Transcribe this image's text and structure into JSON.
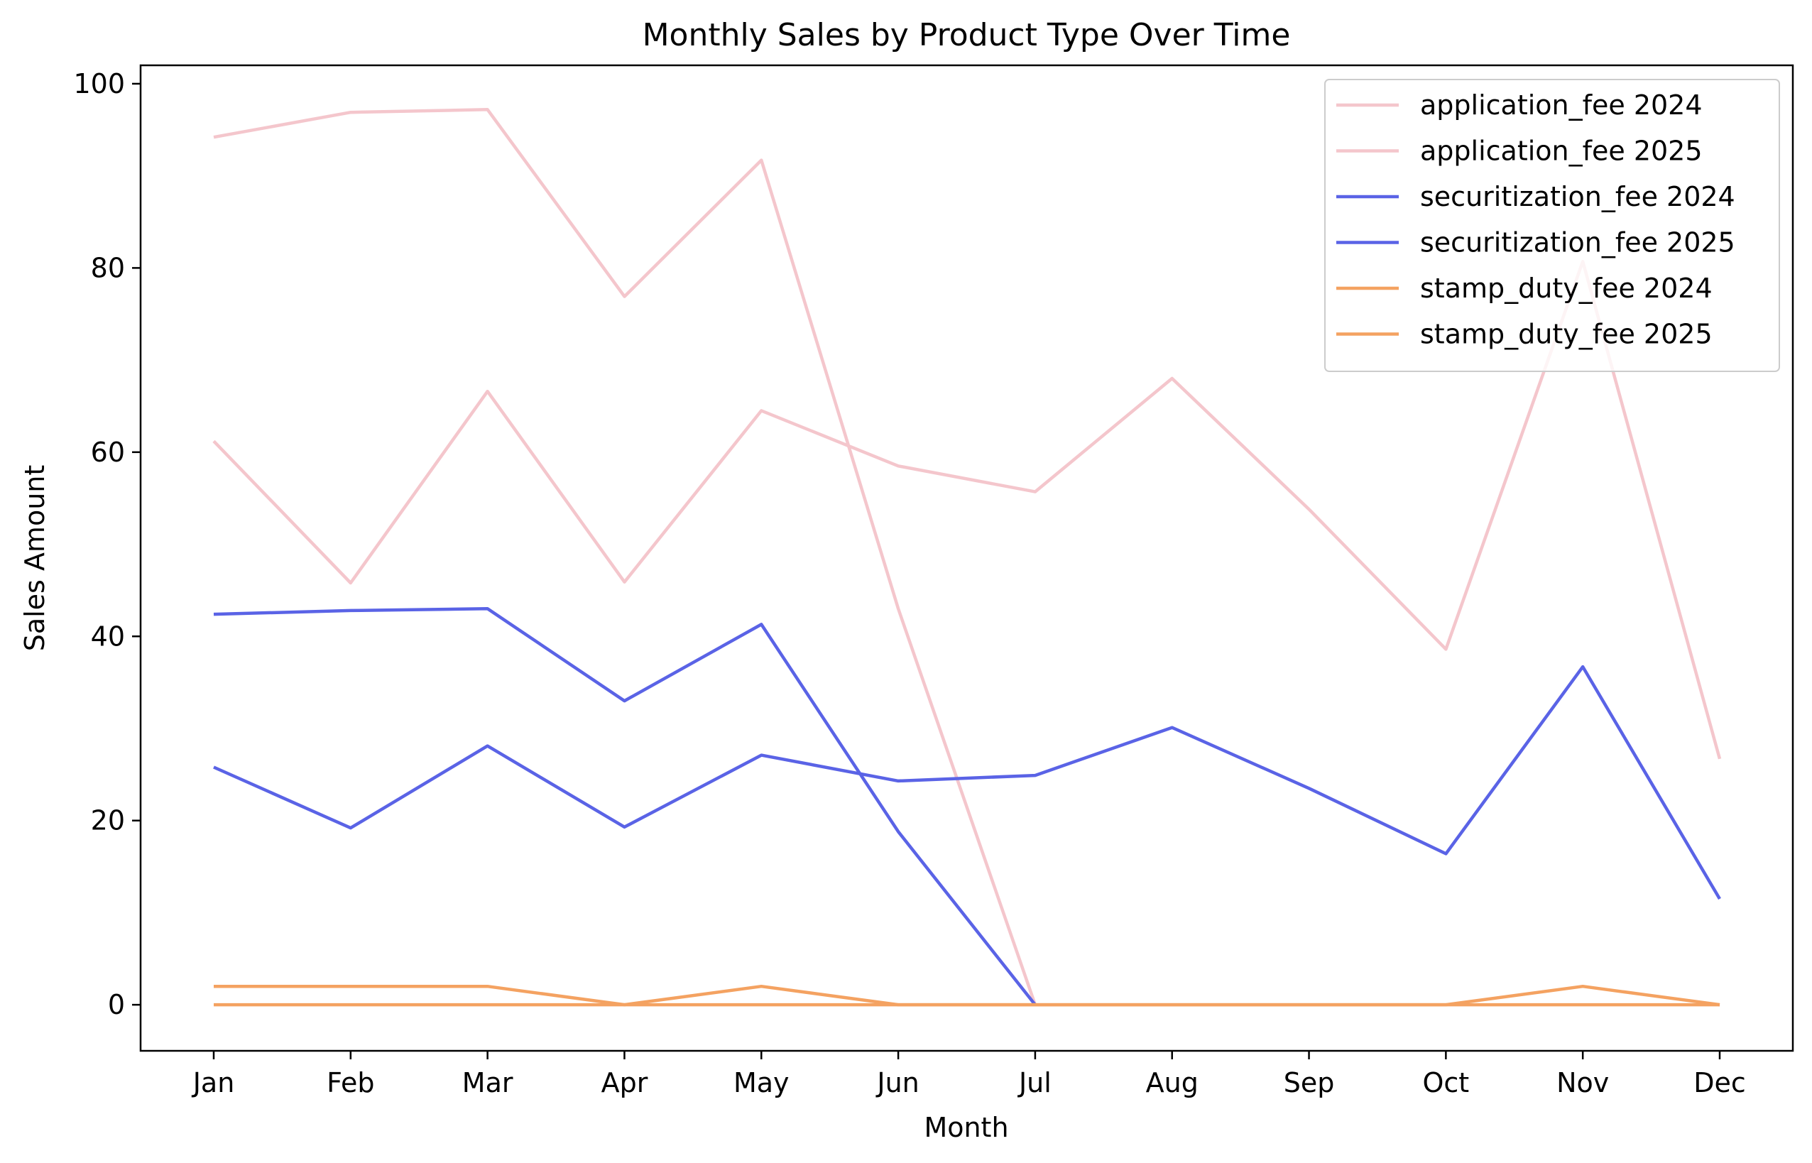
{
  "chart_data": {
    "type": "line",
    "title": "Monthly Sales by Product Type Over Time",
    "xlabel": "Month",
    "ylabel": "Sales Amount",
    "categories": [
      "Jan",
      "Feb",
      "Mar",
      "Apr",
      "May",
      "Jun",
      "Jul",
      "Aug",
      "Sep",
      "Oct",
      "Nov",
      "Dec"
    ],
    "ylim": [
      -5,
      102
    ],
    "yticks": [
      0,
      20,
      40,
      60,
      80,
      100
    ],
    "grid": false,
    "legend": "top-right",
    "series": [
      {
        "name": "application_fee 2024",
        "color": "#f4c6cc",
        "values": [
          61.2,
          45.8,
          66.6,
          45.9,
          64.5,
          58.5,
          55.7,
          68.0,
          53.8,
          38.6,
          80.7,
          26.7
        ]
      },
      {
        "name": "application_fee 2025",
        "color": "#f4c6cc",
        "values": [
          94.2,
          96.9,
          97.2,
          76.9,
          91.7,
          43.0,
          0,
          null,
          null,
          null,
          null,
          null
        ]
      },
      {
        "name": "securitization_fee 2024",
        "color": "#5a63e6",
        "values": [
          25.8,
          19.2,
          28.1,
          19.3,
          27.1,
          24.3,
          24.9,
          30.1,
          23.5,
          16.4,
          36.7,
          11.5
        ]
      },
      {
        "name": "securitization_fee 2025",
        "color": "#5a63e6",
        "values": [
          42.4,
          42.8,
          43.0,
          33.0,
          41.3,
          18.8,
          0,
          null,
          null,
          null,
          null,
          null
        ]
      },
      {
        "name": "stamp_duty_fee 2024",
        "color": "#f4a261",
        "values": [
          2,
          2,
          2,
          0,
          2,
          0,
          0,
          0,
          0,
          0,
          2,
          0
        ]
      },
      {
        "name": "stamp_duty_fee 2025",
        "color": "#f4a261",
        "values": [
          0,
          0,
          0,
          0,
          0,
          0,
          0,
          0,
          0,
          0,
          0,
          0
        ]
      }
    ]
  }
}
